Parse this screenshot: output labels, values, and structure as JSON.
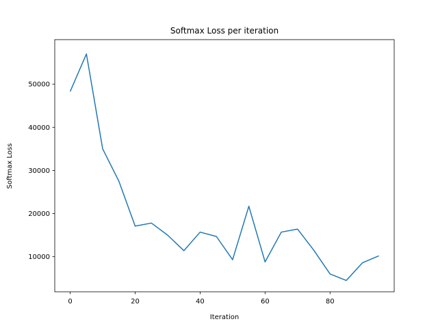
{
  "chart_data": {
    "type": "line",
    "title": "Softmax Loss per iteration",
    "xlabel": "Iteration",
    "ylabel": "Softmax Loss",
    "xlim": [
      -4.75,
      99.75
    ],
    "ylim": [
      1870,
      60320
    ],
    "xticks": [
      0,
      20,
      40,
      60,
      80
    ],
    "yticks": [
      10000,
      20000,
      30000,
      40000,
      50000
    ],
    "grid": false,
    "series": [
      {
        "color": "#1f77b4",
        "x": [
          0,
          5,
          10,
          15,
          20,
          25,
          30,
          35,
          40,
          45,
          50,
          55,
          60,
          65,
          70,
          75,
          80,
          85,
          90,
          95
        ],
        "y": [
          48300,
          57000,
          35000,
          27500,
          17100,
          17800,
          15000,
          11400,
          15700,
          14700,
          9300,
          21700,
          8800,
          15700,
          16400,
          11500,
          6000,
          4500,
          8600,
          10200
        ]
      }
    ]
  }
}
